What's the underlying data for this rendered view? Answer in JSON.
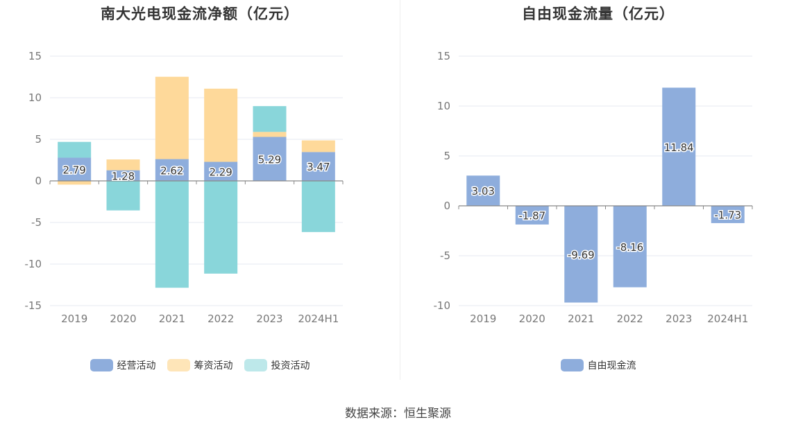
{
  "source": "数据来源：恒生聚源",
  "chart_data": [
    {
      "type": "bar",
      "stacked": true,
      "title": "南大光电现金流净额（亿元）",
      "categories": [
        "2019",
        "2020",
        "2021",
        "2022",
        "2023",
        "2024H1"
      ],
      "ylim": [
        -15,
        15
      ],
      "yticks": [
        15,
        10,
        5,
        0,
        -5,
        -10,
        -15
      ],
      "ytick_labels": [
        "15",
        "10",
        "5",
        "0",
        "-5",
        "-10",
        "-15"
      ],
      "grid": true,
      "legend_position": "bottom",
      "series": [
        {
          "name": "经营活动",
          "color": "#8eaddc",
          "values": [
            2.79,
            1.28,
            2.62,
            2.29,
            5.29,
            3.47
          ],
          "labels": [
            "2.79",
            "1.28",
            "2.62",
            "2.29",
            "5.29",
            "3.47"
          ]
        },
        {
          "name": "筹资活动",
          "color": "#fed99a",
          "values": [
            -0.45,
            1.3,
            9.9,
            8.8,
            0.6,
            1.4
          ]
        },
        {
          "name": "投资活动",
          "color": "#89d6da",
          "values": [
            1.9,
            -3.55,
            -12.85,
            -11.15,
            3.1,
            -6.15
          ]
        }
      ],
      "legend_colors": [
        "#8eaddc",
        "#fee5b8",
        "#bde8ea"
      ]
    },
    {
      "type": "bar",
      "title": "自由现金流量（亿元）",
      "categories": [
        "2019",
        "2020",
        "2021",
        "2022",
        "2023",
        "2024H1"
      ],
      "ylim": [
        -10,
        15
      ],
      "yticks": [
        15,
        10,
        5,
        0,
        -5,
        -10
      ],
      "ytick_labels": [
        "15",
        "10",
        "5",
        "0",
        "-5",
        "-10"
      ],
      "grid": true,
      "legend_position": "bottom",
      "series": [
        {
          "name": "自由现金流",
          "color": "#8eaddc",
          "values": [
            3.03,
            -1.87,
            -9.69,
            -8.16,
            11.84,
            -1.73
          ],
          "labels": [
            "3.03",
            "-1.87",
            "-9.69",
            "-8.16",
            "11.84",
            "-1.73"
          ]
        }
      ]
    }
  ]
}
